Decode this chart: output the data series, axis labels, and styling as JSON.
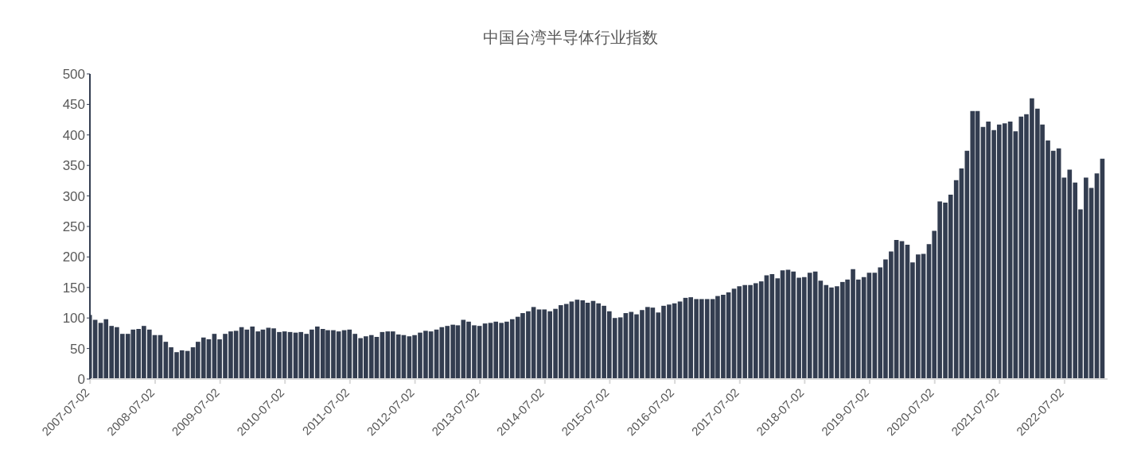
{
  "chart_data": {
    "type": "bar",
    "title": "中国台湾半导体行业指数",
    "x": [
      "2007-07",
      "2007-08",
      "2007-09",
      "2007-10",
      "2007-11",
      "2007-12",
      "2008-01",
      "2008-02",
      "2008-03",
      "2008-04",
      "2008-05",
      "2008-06",
      "2008-07",
      "2008-08",
      "2008-09",
      "2008-10",
      "2008-11",
      "2008-12",
      "2009-01",
      "2009-02",
      "2009-03",
      "2009-04",
      "2009-05",
      "2009-06",
      "2009-07",
      "2009-08",
      "2009-09",
      "2009-10",
      "2009-11",
      "2009-12",
      "2010-01",
      "2010-02",
      "2010-03",
      "2010-04",
      "2010-05",
      "2010-06",
      "2010-07",
      "2010-08",
      "2010-09",
      "2010-10",
      "2010-11",
      "2010-12",
      "2011-01",
      "2011-02",
      "2011-03",
      "2011-04",
      "2011-05",
      "2011-06",
      "2011-07",
      "2011-08",
      "2011-09",
      "2011-10",
      "2011-11",
      "2011-12",
      "2012-01",
      "2012-02",
      "2012-03",
      "2012-04",
      "2012-05",
      "2012-06",
      "2012-07",
      "2012-08",
      "2012-09",
      "2012-10",
      "2012-11",
      "2012-12",
      "2013-01",
      "2013-02",
      "2013-03",
      "2013-04",
      "2013-05",
      "2013-06",
      "2013-07",
      "2013-08",
      "2013-09",
      "2013-10",
      "2013-11",
      "2013-12",
      "2014-01",
      "2014-02",
      "2014-03",
      "2014-04",
      "2014-05",
      "2014-06",
      "2014-07",
      "2014-08",
      "2014-09",
      "2014-10",
      "2014-11",
      "2014-12",
      "2015-01",
      "2015-02",
      "2015-03",
      "2015-04",
      "2015-05",
      "2015-06",
      "2015-07",
      "2015-08",
      "2015-09",
      "2015-10",
      "2015-11",
      "2015-12",
      "2016-01",
      "2016-02",
      "2016-03",
      "2016-04",
      "2016-05",
      "2016-06",
      "2016-07",
      "2016-08",
      "2016-09",
      "2016-10",
      "2016-11",
      "2016-12",
      "2017-01",
      "2017-02",
      "2017-03",
      "2017-04",
      "2017-05",
      "2017-06",
      "2017-07",
      "2017-08",
      "2017-09",
      "2017-10",
      "2017-11",
      "2017-12",
      "2018-01",
      "2018-02",
      "2018-03",
      "2018-04",
      "2018-05",
      "2018-06",
      "2018-07",
      "2018-08",
      "2018-09",
      "2018-10",
      "2018-11",
      "2018-12",
      "2019-01",
      "2019-02",
      "2019-03",
      "2019-04",
      "2019-05",
      "2019-06",
      "2019-07",
      "2019-08",
      "2019-09",
      "2019-10",
      "2019-11",
      "2019-12",
      "2020-01",
      "2020-02",
      "2020-03",
      "2020-04",
      "2020-05",
      "2020-06",
      "2020-07",
      "2020-08",
      "2020-09",
      "2020-10",
      "2020-11",
      "2020-12",
      "2021-01",
      "2021-02",
      "2021-03",
      "2021-04",
      "2021-05",
      "2021-06",
      "2021-07",
      "2021-08",
      "2021-09",
      "2021-10",
      "2021-11",
      "2021-12",
      "2022-01",
      "2022-02",
      "2022-03",
      "2022-04",
      "2022-05",
      "2022-06",
      "2022-07",
      "2022-08",
      "2022-09",
      "2022-10",
      "2022-11",
      "2022-12",
      "2023-01",
      "2023-02"
    ],
    "values": [
      105,
      97,
      92,
      98,
      87,
      85,
      74,
      74,
      81,
      82,
      87,
      81,
      72,
      72,
      61,
      52,
      44,
      47,
      46,
      52,
      61,
      68,
      65,
      74,
      65,
      74,
      78,
      79,
      85,
      81,
      86,
      78,
      81,
      84,
      83,
      77,
      78,
      77,
      76,
      77,
      74,
      81,
      86,
      82,
      80,
      80,
      78,
      80,
      81,
      74,
      67,
      70,
      72,
      69,
      77,
      78,
      78,
      73,
      72,
      70,
      72,
      76,
      79,
      78,
      81,
      85,
      87,
      89,
      88,
      97,
      94,
      88,
      87,
      91,
      92,
      94,
      92,
      94,
      98,
      102,
      108,
      111,
      118,
      114,
      114,
      111,
      115,
      121,
      123,
      127,
      130,
      129,
      125,
      128,
      124,
      120,
      111,
      100,
      101,
      108,
      110,
      106,
      113,
      118,
      117,
      109,
      120,
      122,
      124,
      127,
      133,
      134,
      131,
      131,
      131,
      131,
      136,
      138,
      142,
      148,
      152,
      154,
      154,
      157,
      160,
      170,
      172,
      165,
      178,
      179,
      176,
      166,
      167,
      174,
      176,
      161,
      154,
      150,
      152,
      159,
      163,
      180,
      163,
      167,
      174,
      174,
      183,
      196,
      209,
      228,
      226,
      220,
      191,
      204,
      205,
      221,
      243,
      291,
      289,
      302,
      326,
      345,
      374,
      439,
      439,
      413,
      422,
      408,
      417,
      419,
      422,
      406,
      430,
      434,
      460,
      443,
      417,
      391,
      374,
      378,
      330,
      343,
      322,
      278,
      330,
      313,
      337,
      361
    ],
    "color": "#333d50",
    "xlim": [
      "2007-07-01",
      "2023-03-01"
    ],
    "xticks": [
      "2007-07-02",
      "2008-07-02",
      "2009-07-02",
      "2010-07-02",
      "2011-07-02",
      "2012-07-02",
      "2013-07-02",
      "2014-07-02",
      "2015-07-02",
      "2016-07-02",
      "2017-07-02",
      "2018-07-02",
      "2019-07-02",
      "2020-07-02",
      "2021-07-02",
      "2022-07-02"
    ],
    "ylim": [
      0,
      500
    ],
    "yticks": [
      0,
      50,
      100,
      150,
      200,
      250,
      300,
      350,
      400,
      450,
      500
    ],
    "grid": false,
    "legend": false
  }
}
